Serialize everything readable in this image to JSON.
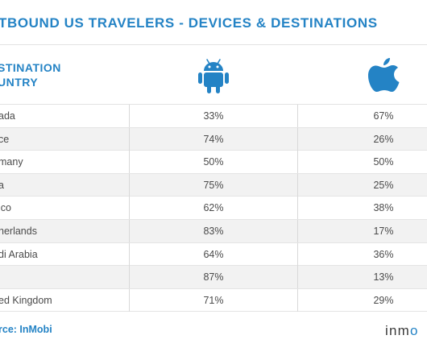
{
  "title": "TBOUND US TRAVELERS - DEVICES & DESTINATIONS",
  "header": {
    "col_label_line1": "STINATION",
    "col_label_line2": "UNTRY",
    "android_icon": "android-icon",
    "apple_icon": "apple-icon"
  },
  "rows": [
    {
      "country": "ada",
      "android": "33%",
      "ios": "67%"
    },
    {
      "country": "ce",
      "android": "74%",
      "ios": "26%"
    },
    {
      "country": "many",
      "android": "50%",
      "ios": "50%"
    },
    {
      "country": "a",
      "android": "75%",
      "ios": "25%"
    },
    {
      "country": "ico",
      "android": "62%",
      "ios": "38%"
    },
    {
      "country": "herlands",
      "android": "83%",
      "ios": "17%"
    },
    {
      "country": "di Arabia",
      "android": "64%",
      "ios": "36%"
    },
    {
      "country": "",
      "android": "87%",
      "ios": "13%"
    },
    {
      "country": "ed Kingdom",
      "android": "71%",
      "ios": "29%"
    }
  ],
  "source": "rce: InMobi",
  "brand": {
    "main": "inm",
    "tail": "o"
  },
  "colors": {
    "accent": "#2483c5",
    "row_alt": "#f2f2f2"
  }
}
